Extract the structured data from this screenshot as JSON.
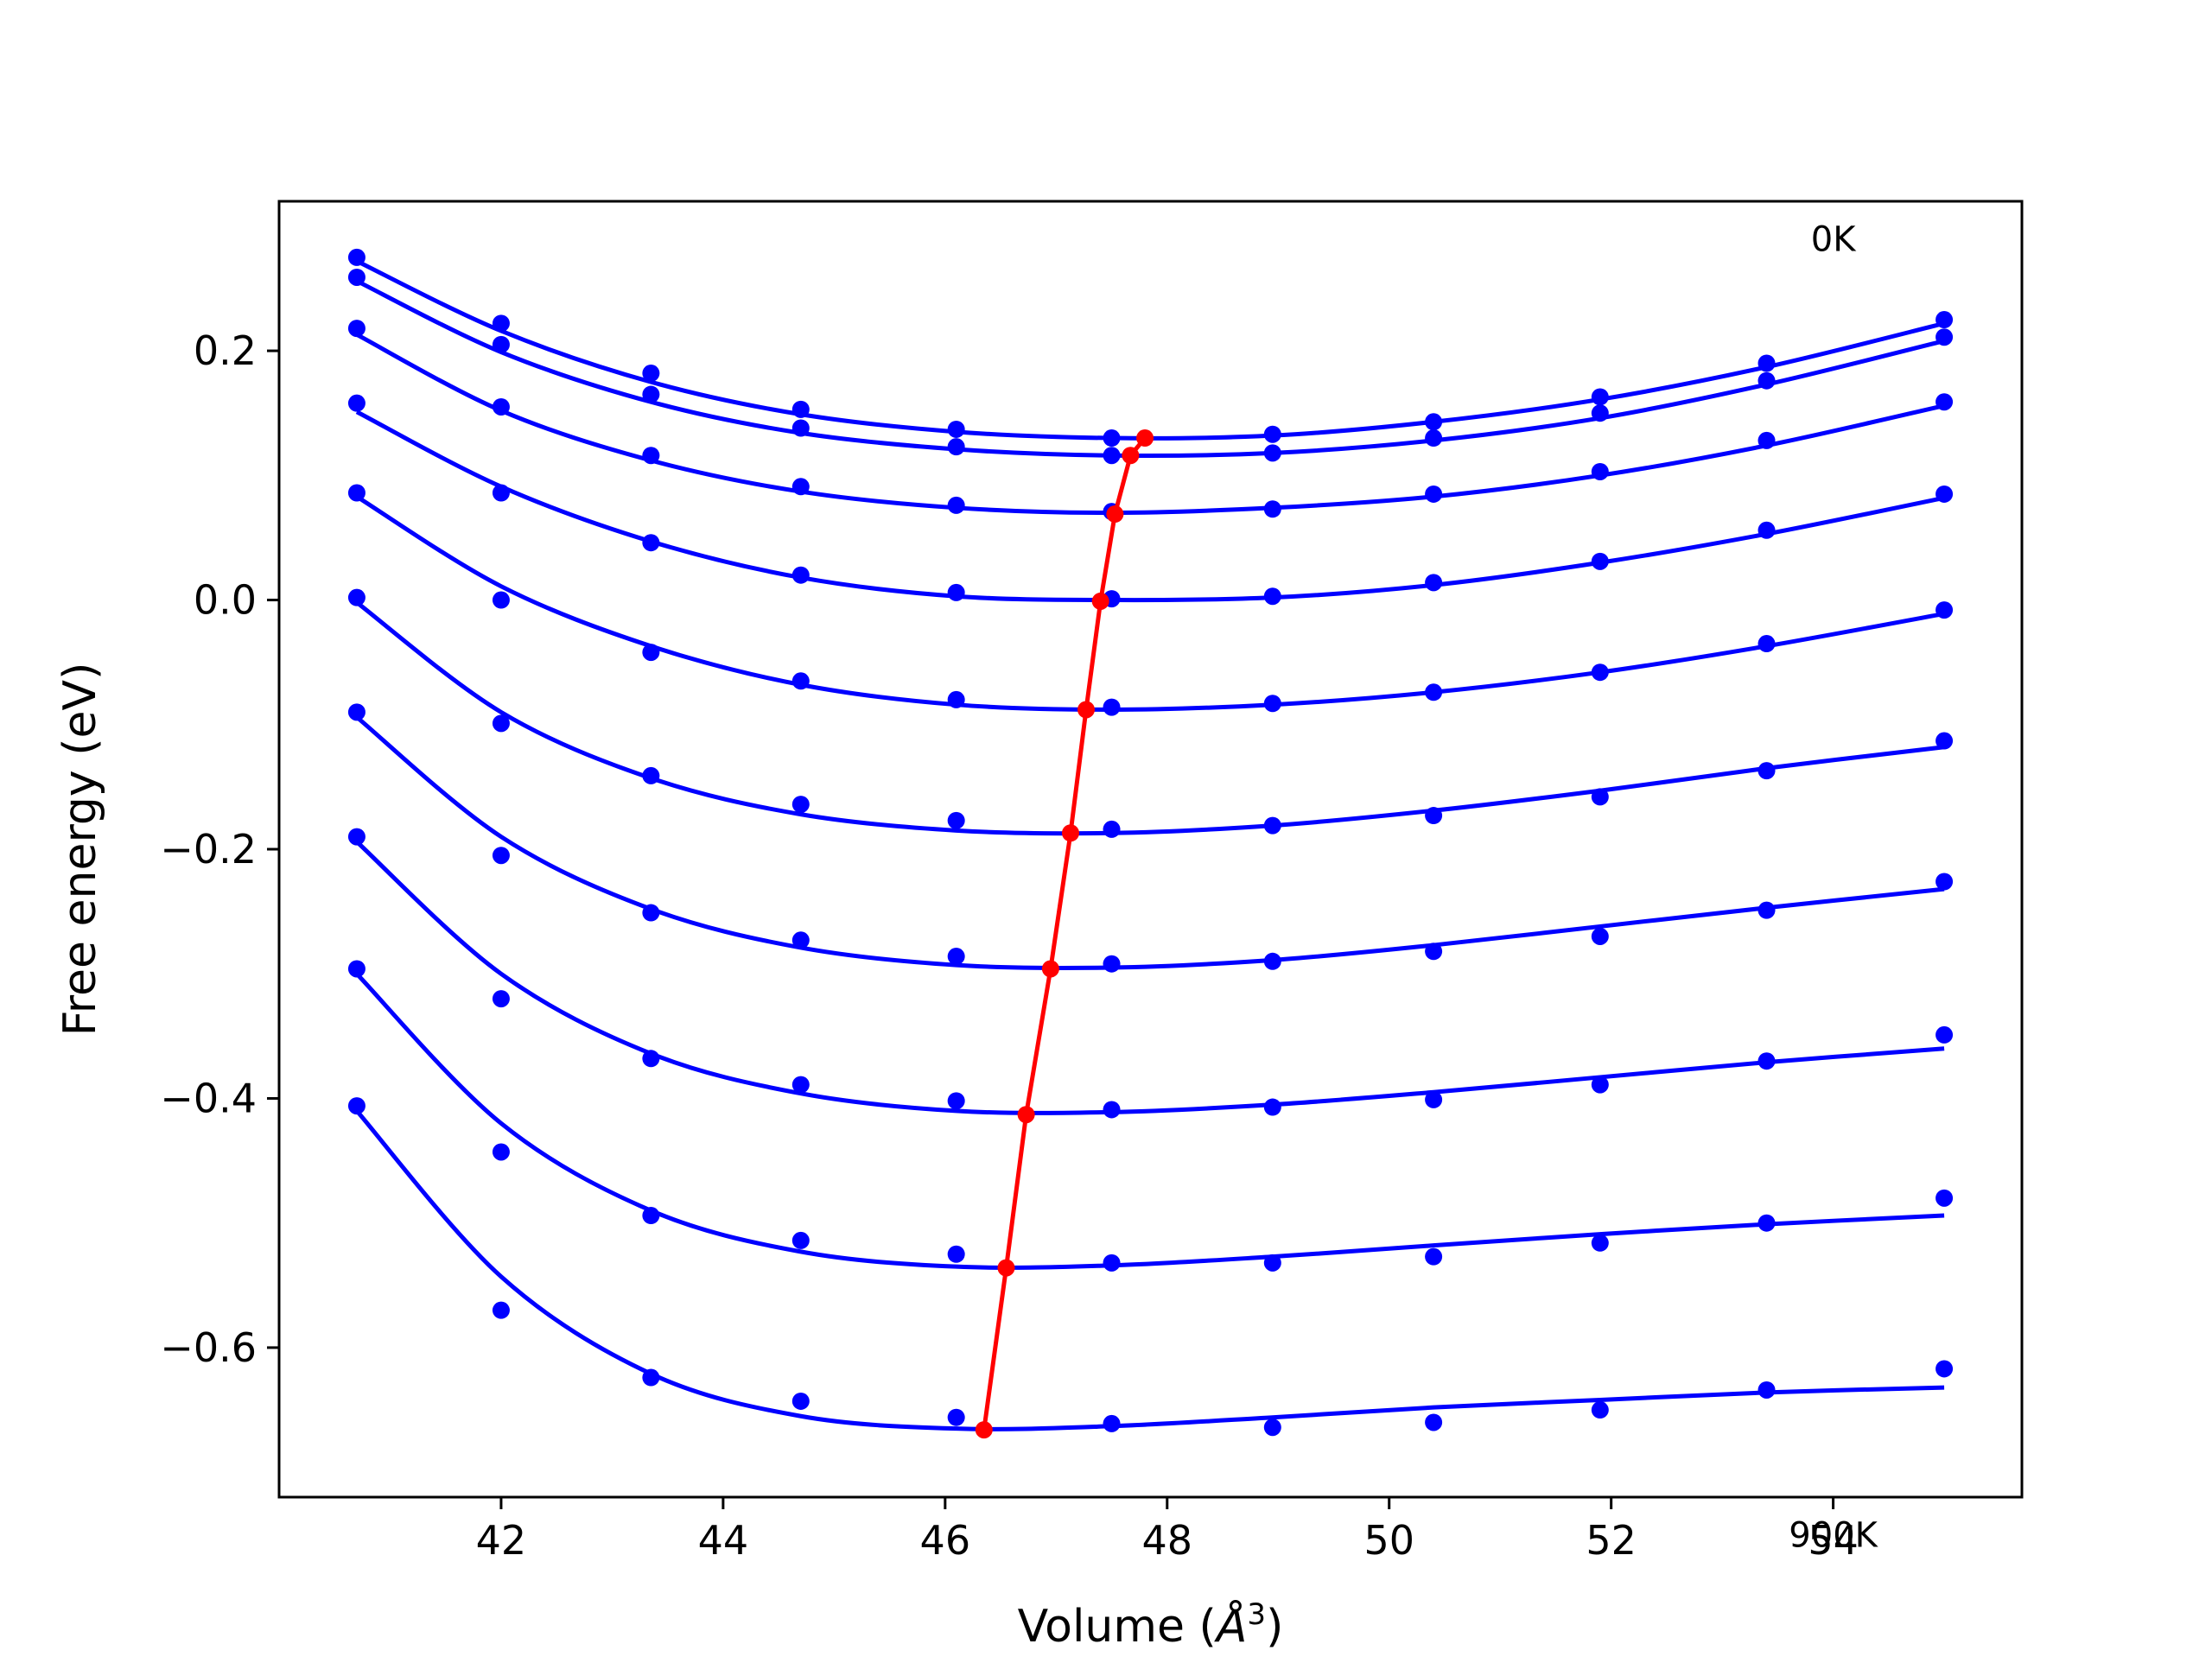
{
  "chart_data": {
    "type": "scatter",
    "title": "",
    "xlabel": "Volume (",
    "xlabel_symbol": "Å",
    "xlabel_power": "3",
    "xlabel_close": ")",
    "ylabel": "Free energy (eV)",
    "xlim": [
      40.0,
      55.7
    ],
    "ylim": [
      -0.72,
      0.32
    ],
    "xticks": [
      42,
      44,
      46,
      48,
      50,
      52,
      54
    ],
    "xtick_labels": [
      "42",
      "44",
      "46",
      "48",
      "50",
      "52",
      "54"
    ],
    "yticks": [
      0.2,
      0.0,
      -0.2,
      -0.4,
      -0.6
    ],
    "ytick_labels": [
      "0.2",
      "0.0",
      "−0.2",
      "−0.4",
      "−0.6"
    ],
    "grid": false,
    "annotations": [
      {
        "text": "0K",
        "x": 54.0,
        "y": 0.28
      },
      {
        "text": "900K",
        "x": 54.0,
        "y": -0.76
      }
    ],
    "volumes": [
      40.7,
      42.0,
      43.35,
      44.7,
      46.1,
      47.5,
      48.95,
      50.4,
      51.9,
      53.4,
      55.0
    ],
    "series": [
      {
        "points": [
          0.275,
          0.222,
          0.182,
          0.153,
          0.137,
          0.13,
          0.133,
          0.143,
          0.163,
          0.19,
          0.225
        ],
        "fit": [
          [
            40.7,
            0.272
          ],
          [
            42.0,
            0.216
          ],
          [
            43.35,
            0.175
          ],
          [
            44.7,
            0.149
          ],
          [
            46.1,
            0.135
          ],
          [
            47.5,
            0.13
          ],
          [
            48.95,
            0.132
          ],
          [
            50.4,
            0.143
          ],
          [
            51.9,
            0.161
          ],
          [
            53.4,
            0.187
          ],
          [
            55.0,
            0.222
          ]
        ]
      },
      {
        "points": [
          0.259,
          0.205,
          0.165,
          0.138,
          0.123,
          0.116,
          0.118,
          0.13,
          0.15,
          0.176,
          0.211
        ],
        "fit": [
          [
            40.7,
            0.256
          ],
          [
            42.0,
            0.199
          ],
          [
            43.35,
            0.159
          ],
          [
            44.7,
            0.134
          ],
          [
            46.1,
            0.121
          ],
          [
            47.5,
            0.116
          ],
          [
            48.95,
            0.118
          ],
          [
            50.4,
            0.128
          ],
          [
            51.9,
            0.146
          ],
          [
            53.4,
            0.173
          ],
          [
            55.0,
            0.208
          ]
        ]
      },
      {
        "points": [
          0.218,
          0.155,
          0.116,
          0.091,
          0.076,
          0.071,
          0.073,
          0.085,
          0.103,
          0.128,
          0.159
        ],
        "fit": [
          [
            40.7,
            0.213
          ],
          [
            42.0,
            0.152
          ],
          [
            43.35,
            0.112
          ],
          [
            44.7,
            0.087
          ],
          [
            46.1,
            0.074
          ],
          [
            47.5,
            0.07
          ],
          [
            48.95,
            0.074
          ],
          [
            50.4,
            0.083
          ],
          [
            51.9,
            0.1
          ],
          [
            53.4,
            0.124
          ],
          [
            55.0,
            0.156
          ]
        ]
      },
      {
        "points": [
          0.158,
          0.086,
          0.046,
          0.02,
          0.006,
          0.001,
          0.003,
          0.014,
          0.031,
          0.056,
          0.085
        ],
        "fit": [
          [
            40.7,
            0.151
          ],
          [
            42.0,
            0.091
          ],
          [
            43.35,
            0.047
          ],
          [
            44.7,
            0.018
          ],
          [
            46.1,
            0.003
          ],
          [
            47.5,
            0.0
          ],
          [
            48.95,
            0.002
          ],
          [
            50.4,
            0.012
          ],
          [
            51.9,
            0.03
          ],
          [
            53.4,
            0.053
          ],
          [
            55.0,
            0.082
          ]
        ]
      },
      {
        "points": [
          0.086,
          0.0,
          -0.042,
          -0.065,
          -0.08,
          -0.086,
          -0.083,
          -0.074,
          -0.058,
          -0.035,
          -0.008
        ],
        "fit": [
          [
            40.7,
            0.083
          ],
          [
            42.0,
            0.011
          ],
          [
            43.35,
            -0.037
          ],
          [
            44.7,
            -0.068
          ],
          [
            46.1,
            -0.084
          ],
          [
            47.5,
            -0.088
          ],
          [
            48.95,
            -0.084
          ],
          [
            50.4,
            -0.074
          ],
          [
            51.9,
            -0.058
          ],
          [
            53.4,
            -0.037
          ],
          [
            55.0,
            -0.011
          ]
        ]
      },
      {
        "points": [
          0.002,
          -0.099,
          -0.141,
          -0.164,
          -0.177,
          -0.184,
          -0.181,
          -0.173,
          -0.158,
          -0.137,
          -0.113
        ],
        "fit": [
          [
            40.7,
            -0.002
          ],
          [
            42.0,
            -0.09
          ],
          [
            43.35,
            -0.143
          ],
          [
            44.7,
            -0.172
          ],
          [
            46.1,
            -0.185
          ],
          [
            47.5,
            -0.187
          ],
          [
            48.95,
            -0.181
          ],
          [
            50.4,
            -0.169
          ],
          [
            51.9,
            -0.153
          ],
          [
            53.4,
            -0.135
          ],
          [
            55.0,
            -0.118
          ]
        ]
      },
      {
        "points": [
          -0.09,
          -0.205,
          -0.251,
          -0.273,
          -0.286,
          -0.292,
          -0.29,
          -0.282,
          -0.27,
          -0.249,
          -0.226
        ],
        "fit": [
          [
            40.7,
            -0.094
          ],
          [
            42.0,
            -0.19
          ],
          [
            43.35,
            -0.248
          ],
          [
            44.7,
            -0.279
          ],
          [
            46.1,
            -0.293
          ],
          [
            47.5,
            -0.295
          ],
          [
            48.95,
            -0.289
          ],
          [
            50.4,
            -0.277
          ],
          [
            51.9,
            -0.262
          ],
          [
            53.4,
            -0.247
          ],
          [
            55.0,
            -0.232
          ]
        ]
      },
      {
        "points": [
          -0.19,
          -0.32,
          -0.368,
          -0.389,
          -0.402,
          -0.409,
          -0.407,
          -0.401,
          -0.389,
          -0.37,
          -0.349
        ],
        "fit": [
          [
            40.7,
            -0.194
          ],
          [
            42.0,
            -0.3
          ],
          [
            43.35,
            -0.364
          ],
          [
            44.7,
            -0.396
          ],
          [
            46.1,
            -0.41
          ],
          [
            47.5,
            -0.411
          ],
          [
            48.95,
            -0.405
          ],
          [
            50.4,
            -0.395
          ],
          [
            51.9,
            -0.383
          ],
          [
            53.4,
            -0.371
          ],
          [
            55.0,
            -0.36
          ]
        ]
      },
      {
        "points": [
          -0.296,
          -0.443,
          -0.494,
          -0.514,
          -0.525,
          -0.532,
          -0.532,
          -0.527,
          -0.516,
          -0.5,
          -0.48
        ],
        "fit": [
          [
            40.7,
            -0.3
          ],
          [
            42.0,
            -0.42
          ],
          [
            43.35,
            -0.49
          ],
          [
            44.7,
            -0.523
          ],
          [
            46.1,
            -0.535
          ],
          [
            47.5,
            -0.534
          ],
          [
            48.95,
            -0.527
          ],
          [
            50.4,
            -0.518
          ],
          [
            51.9,
            -0.509
          ],
          [
            53.4,
            -0.501
          ],
          [
            55.0,
            -0.494
          ]
        ]
      },
      {
        "points": [
          -0.406,
          -0.57,
          -0.624,
          -0.643,
          -0.656,
          -0.661,
          -0.664,
          -0.66,
          -0.65,
          -0.634,
          -0.617
        ],
        "fit": [
          [
            40.7,
            -0.41
          ],
          [
            42.0,
            -0.543
          ],
          [
            43.35,
            -0.621
          ],
          [
            44.7,
            -0.655
          ],
          [
            46.1,
            -0.665
          ],
          [
            47.5,
            -0.663
          ],
          [
            48.95,
            -0.656
          ],
          [
            50.4,
            -0.648
          ],
          [
            51.9,
            -0.642
          ],
          [
            53.4,
            -0.636
          ],
          [
            55.0,
            -0.632
          ]
        ]
      }
    ],
    "minimum_path": {
      "x": [
        47.8,
        47.67,
        47.53,
        47.4,
        47.27,
        47.13,
        46.95,
        46.73,
        46.55,
        46.35
      ],
      "y": [
        0.13,
        0.116,
        0.069,
        -0.001,
        -0.088,
        -0.187,
        -0.296,
        -0.413,
        -0.536,
        -0.666
      ]
    },
    "colors": {
      "curves": "#0000ff",
      "points": "#0000ff",
      "minimum_path": "#ff0000",
      "axes": "#000000"
    }
  }
}
